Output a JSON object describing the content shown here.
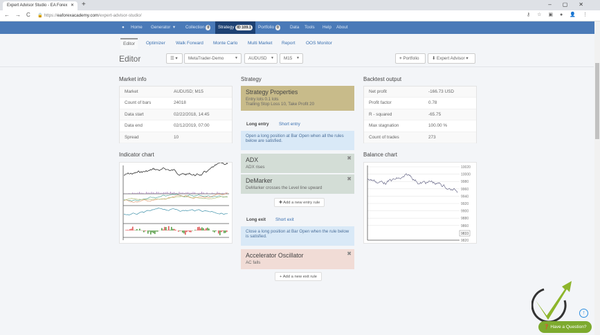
{
  "browser": {
    "tab_title": "Expert Advisor Studio - EA Forex",
    "url_domain": "eaforexacademy.com",
    "url_path": "/expert-advisor-studio/",
    "url_scheme": "https://"
  },
  "navbar": {
    "items": [
      {
        "label": "Home"
      },
      {
        "label": "Generator"
      },
      {
        "label": "Collection",
        "badge": "0"
      },
      {
        "label": "Strategy",
        "badge": "ID 109.1"
      },
      {
        "label": "Portfolio",
        "badge": "0"
      },
      {
        "label": "Data"
      },
      {
        "label": "Tools"
      },
      {
        "label": "Help"
      },
      {
        "label": "About"
      }
    ]
  },
  "subtabs": [
    "Editor",
    "Optimizer",
    "Walk Forward",
    "Monte Carlo",
    "Multi Market",
    "Report",
    "OOS Monitor"
  ],
  "editor": {
    "title": "Editor",
    "server": "MetaTrader-Demo",
    "symbol": "AUDUSD",
    "period": "M15",
    "portfolio_btn": "Portfolio",
    "ea_btn": "Expert Advisor"
  },
  "market_info": {
    "title": "Market info",
    "rows": [
      {
        "k": "Market",
        "v": "AUDUSD; M15"
      },
      {
        "k": "Count of bars",
        "v": "24018"
      },
      {
        "k": "Data start",
        "v": "02/22/2018, 14:45"
      },
      {
        "k": "Data end",
        "v": "02/12/2019, 07:00"
      },
      {
        "k": "Spread",
        "v": "10"
      }
    ]
  },
  "indicator_chart": {
    "title": "Indicator chart"
  },
  "strategy": {
    "title": "Strategy",
    "props_title": "Strategy Properties",
    "props_line1": "Entry lots 0.1 lots",
    "props_line2": "Trailing Stop Loss 10, Take Profit 20",
    "long_entry": "Long entry",
    "short_entry": "Short entry",
    "entry_info": "Open a long position at Bar Open when all the rules below are satisfied.",
    "entry_rules": [
      {
        "name": "ADX",
        "desc": "ADX rises"
      },
      {
        "name": "DeMarker",
        "desc": "DeMarker crosses the Level line upward"
      }
    ],
    "add_entry": "Add a new entry rule",
    "long_exit": "Long exit",
    "short_exit": "Short exit",
    "exit_info": "Close a long position at Bar Open when the rule below is satisfied.",
    "exit_rules": [
      {
        "name": "Accelerator Oscillator",
        "desc": "AC falls"
      }
    ],
    "add_exit": "Add a new exit rule"
  },
  "backtest": {
    "title": "Backtest output",
    "rows": [
      {
        "k": "Net profit",
        "v": "-166.73 USD"
      },
      {
        "k": "Profit factor",
        "v": "0.78"
      },
      {
        "k": "R - squared",
        "v": "-65.75"
      },
      {
        "k": "Max stagnation",
        "v": "100.00 %"
      },
      {
        "k": "Count of trades",
        "v": "273"
      }
    ]
  },
  "balance_chart": {
    "title": "Balance chart",
    "y_ticks": [
      "10020",
      "10000",
      "9980",
      "9960",
      "9940",
      "9920",
      "9900",
      "9880",
      "9860",
      "9820"
    ],
    "current": "9833"
  },
  "help": {
    "label": "Have a Question?"
  },
  "colors": {
    "navbar": "#4a7ab8",
    "props": "#c8bb8a",
    "entry_rule": "#d3ddd6",
    "exit_rule": "#f1dcd6",
    "info": "#d9e9f7",
    "ask": "#7daa2e"
  }
}
